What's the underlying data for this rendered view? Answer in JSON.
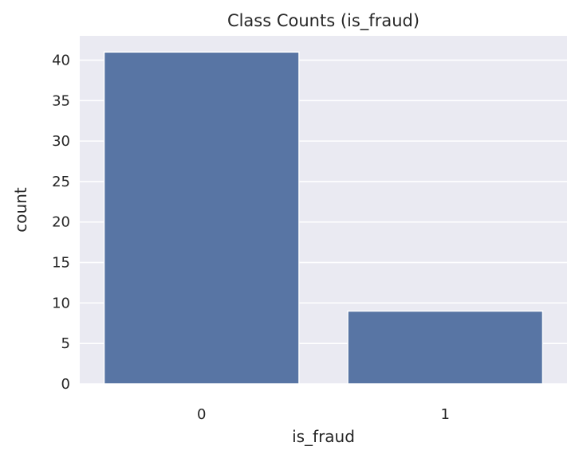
{
  "chart_data": {
    "type": "bar",
    "title": "Class Counts (is_fraud)",
    "xlabel": "is_fraud",
    "ylabel": "count",
    "categories": [
      "0",
      "1"
    ],
    "values": [
      41,
      9
    ],
    "ylim": [
      0,
      43
    ],
    "yticks": [
      0,
      5,
      10,
      15,
      20,
      25,
      30,
      35,
      40
    ],
    "grid": true,
    "bar_color": "#5875A4",
    "background_color": "#EAEAF2",
    "grid_color": "#FFFFFF"
  }
}
